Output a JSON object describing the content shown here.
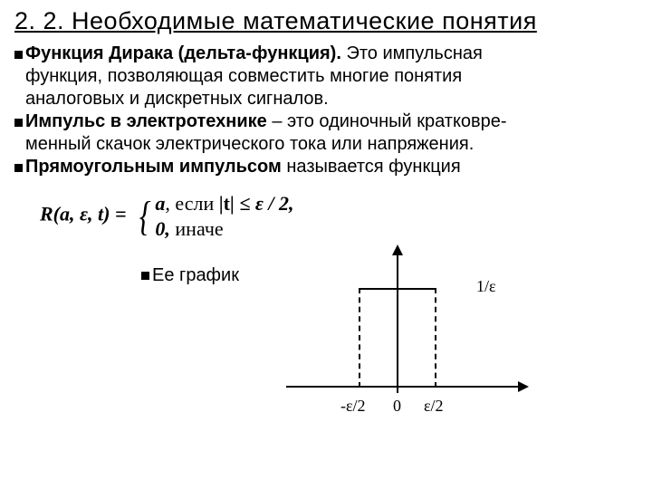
{
  "title": "2. 2. Необходимые математические понятия",
  "p1": {
    "lead": "Функция Дирака (дельта-функция).",
    "rest": " Это импульсная",
    "cont1": "функция, позволяющая совместить многие понятия",
    "cont2": "аналоговых и дискретных сигналов."
  },
  "p2": {
    "lead": "Импульс в электротехнике",
    "rest": " – это одиночный кратковре-",
    "cont": "менный скачок электрического тока или напряжения."
  },
  "p3": {
    "lead": "Прямоугольным импульсом",
    "rest": " называется функция"
  },
  "formula": {
    "lhs": "R(a, ε, t) = ",
    "row1_a": "a",
    "row1_b": ", если ",
    "row1_c": "|t|",
    "row1_d": " ≤ ε / 2,",
    "row2_a": "0,",
    "row2_b": "   иначе"
  },
  "graph": {
    "caption": "Ее график",
    "label_1e": "1/ε",
    "label_neg": "-ε/2",
    "label_zero": "0",
    "label_pos": "ε/2"
  }
}
